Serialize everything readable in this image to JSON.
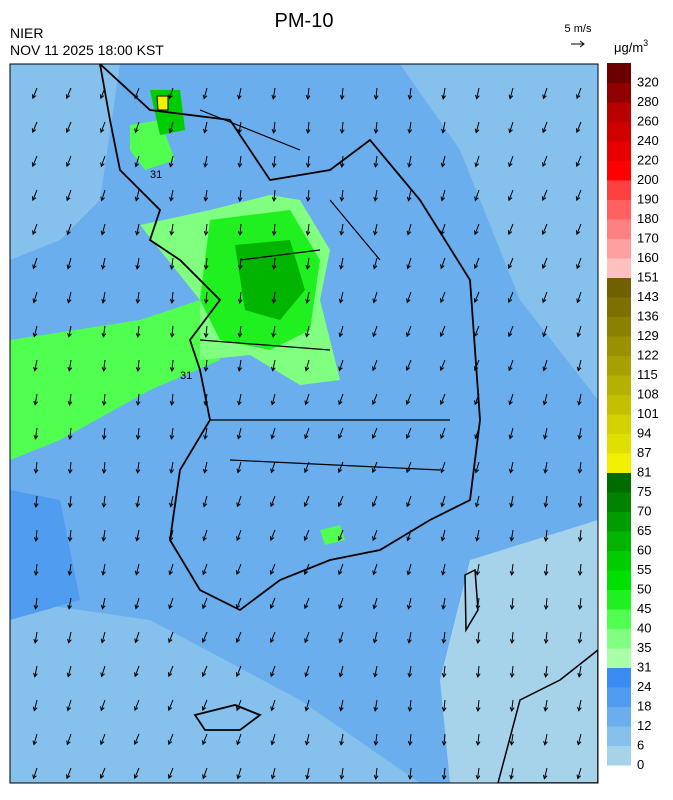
{
  "header": {
    "title": "PM-10",
    "agency": "NIER",
    "timestamp": "NOV 11 2025 18:00 KST"
  },
  "wind_legend": {
    "label": "5 m/s"
  },
  "colorbar": {
    "unit": "μg/m",
    "unit_superscript": "3",
    "ticks": [
      0,
      6,
      12,
      18,
      24,
      31,
      35,
      40,
      45,
      50,
      55,
      60,
      65,
      70,
      75,
      81,
      87,
      94,
      101,
      108,
      115,
      122,
      129,
      136,
      143,
      151,
      160,
      170,
      180,
      190,
      200,
      220,
      240,
      260,
      280,
      320
    ],
    "colors": [
      "#a6d2ea",
      "#86c0ec",
      "#6aaeee",
      "#4f9cf0",
      "#3a8cf2",
      "#a8ffa8",
      "#80ff80",
      "#50ff50",
      "#20f020",
      "#00e000",
      "#00cc00",
      "#00b400",
      "#009c00",
      "#008400",
      "#006c00",
      "#f0f000",
      "#e0e000",
      "#d2d200",
      "#c4c000",
      "#b6b000",
      "#a8a000",
      "#9a9000",
      "#8c8000",
      "#7e7000",
      "#706000",
      "#ffc0c0",
      "#ffa0a0",
      "#ff8080",
      "#ff6060",
      "#ff4040",
      "#ff0000",
      "#e80000",
      "#d00000",
      "#b80000",
      "#900000",
      "#6c0000"
    ]
  },
  "map": {
    "contour_labels": [
      "31",
      "31"
    ]
  }
}
